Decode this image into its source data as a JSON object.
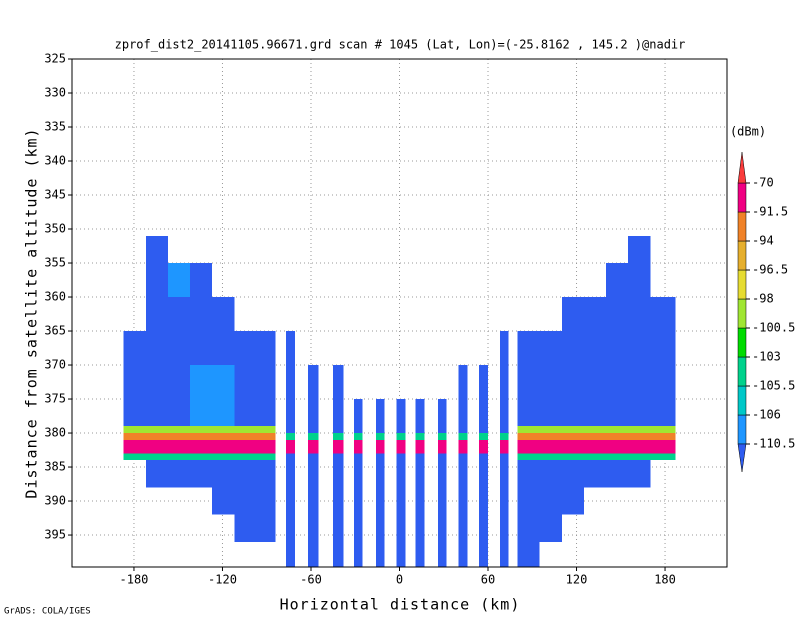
{
  "chart_data": {
    "type": "heatmap",
    "title": "zprof_dist2_20141105.96671.grd  scan # 1045  (Lat, Lon)=(-25.8162 , 145.2 )@nadir",
    "xlabel": "Horizontal distance (km)",
    "ylabel": "Distance from satellite altitude (km)",
    "footer": "GrADS: COLA/IGES",
    "xlim": [
      -222,
      222
    ],
    "ylim": [
      325,
      399.7
    ],
    "y_reversed": true,
    "xticks": [
      -180,
      -120,
      -60,
      0,
      60,
      120,
      180
    ],
    "yticks": [
      325,
      330,
      335,
      340,
      345,
      350,
      355,
      360,
      365,
      370,
      375,
      380,
      385,
      390,
      395
    ],
    "grid": true,
    "xbins": [
      -187,
      -172,
      -157,
      -142,
      -127,
      -112,
      -97,
      -84,
      -77,
      -71,
      -62,
      -55,
      -45,
      -38,
      -31,
      -25,
      -16,
      -10,
      -2,
      4,
      11,
      17,
      26,
      32,
      40,
      46,
      54,
      60,
      68,
      74,
      80,
      95,
      110,
      125,
      140,
      155,
      170,
      187
    ],
    "ybins": [
      351,
      355,
      360,
      365,
      370,
      375,
      379,
      380,
      381,
      383,
      384,
      388,
      392,
      396,
      399.7
    ],
    "z": [
      [
        null,
        -112,
        null,
        null,
        null,
        null,
        null,
        null,
        null,
        null,
        null,
        null,
        null,
        null,
        null,
        null,
        null,
        null,
        null,
        null,
        null,
        null,
        null,
        null,
        null,
        null,
        null,
        null,
        null,
        null,
        null,
        null,
        null,
        null,
        null,
        -112,
        null
      ],
      [
        null,
        -112,
        -107,
        -112,
        null,
        null,
        null,
        null,
        null,
        null,
        null,
        null,
        null,
        null,
        null,
        null,
        null,
        null,
        null,
        null,
        null,
        null,
        null,
        null,
        null,
        null,
        null,
        null,
        null,
        null,
        null,
        null,
        null,
        null,
        -112,
        -112,
        null
      ],
      [
        null,
        -112,
        -112,
        -112,
        -112,
        null,
        null,
        null,
        null,
        null,
        null,
        null,
        null,
        null,
        null,
        null,
        null,
        null,
        null,
        null,
        null,
        null,
        null,
        null,
        null,
        null,
        null,
        null,
        null,
        null,
        null,
        null,
        -112,
        -112,
        -112,
        -112,
        -112
      ],
      [
        -112,
        -112,
        -112,
        -112,
        -112,
        -112,
        -112,
        null,
        -112,
        null,
        null,
        null,
        null,
        null,
        null,
        null,
        null,
        null,
        null,
        null,
        null,
        null,
        null,
        null,
        null,
        null,
        null,
        null,
        -112,
        null,
        -112,
        -112,
        -112,
        -112,
        -112,
        -112,
        -112
      ],
      [
        -112,
        -112,
        -112,
        -107,
        -107,
        -112,
        -112,
        null,
        -112,
        null,
        -112,
        null,
        -112,
        null,
        null,
        null,
        null,
        null,
        null,
        null,
        null,
        null,
        null,
        null,
        -112,
        null,
        -112,
        null,
        -112,
        null,
        -112,
        -112,
        -112,
        -112,
        -112,
        -112,
        -112
      ],
      [
        -112,
        -112,
        -112,
        -107,
        -107,
        -112,
        -112,
        null,
        -112,
        null,
        -112,
        null,
        -112,
        null,
        -112,
        null,
        -112,
        null,
        -112,
        null,
        -112,
        null,
        -112,
        null,
        -112,
        null,
        -112,
        null,
        -112,
        null,
        -112,
        -112,
        -112,
        -112,
        -112,
        -112,
        -112
      ],
      [
        -99,
        -99,
        -99,
        -99,
        -99,
        -99,
        -99,
        null,
        -112,
        null,
        -112,
        null,
        -112,
        null,
        -112,
        null,
        -112,
        null,
        -112,
        null,
        -112,
        null,
        -112,
        null,
        -112,
        null,
        -112,
        null,
        -112,
        null,
        -99,
        -99,
        -99,
        -99,
        -99,
        -99,
        -99
      ],
      [
        -93,
        -93,
        -93,
        -93,
        -93,
        -93,
        -93,
        null,
        -104,
        null,
        -104,
        null,
        -104,
        null,
        -104,
        null,
        -104,
        null,
        -104,
        null,
        -104,
        null,
        -104,
        null,
        -104,
        null,
        -104,
        null,
        -104,
        null,
        -93,
        -93,
        -93,
        -93,
        -93,
        -93,
        -93
      ],
      [
        -85,
        -85,
        -85,
        -85,
        -85,
        -85,
        -85,
        null,
        -85,
        null,
        -85,
        null,
        -85,
        null,
        -85,
        null,
        -85,
        null,
        -85,
        null,
        -85,
        null,
        -85,
        null,
        -85,
        null,
        -85,
        null,
        -85,
        null,
        -85,
        -85,
        -85,
        -85,
        -85,
        -85,
        -85
      ],
      [
        -104,
        -104,
        -104,
        -104,
        -104,
        -104,
        -104,
        null,
        -112,
        null,
        -112,
        null,
        -112,
        null,
        -112,
        null,
        -112,
        null,
        -112,
        null,
        -112,
        null,
        -112,
        null,
        -112,
        null,
        -112,
        null,
        -112,
        null,
        -104,
        -104,
        -104,
        -104,
        -104,
        -104,
        -104
      ],
      [
        null,
        -112,
        -112,
        -112,
        -112,
        -112,
        -112,
        null,
        -112,
        null,
        -112,
        null,
        -112,
        null,
        -112,
        null,
        -112,
        null,
        -112,
        null,
        -112,
        null,
        -112,
        null,
        -112,
        null,
        -112,
        null,
        -112,
        null,
        -112,
        -112,
        -112,
        -112,
        -112,
        -112,
        null
      ],
      [
        null,
        null,
        null,
        null,
        -112,
        -112,
        -112,
        null,
        -112,
        null,
        -112,
        null,
        -112,
        null,
        -112,
        null,
        -112,
        null,
        -112,
        null,
        -112,
        null,
        -112,
        null,
        -112,
        null,
        -112,
        null,
        -112,
        null,
        -112,
        -112,
        -112,
        null,
        null,
        null,
        null
      ],
      [
        null,
        null,
        null,
        null,
        null,
        -112,
        -112,
        null,
        -112,
        null,
        -112,
        null,
        -112,
        null,
        -112,
        null,
        -112,
        null,
        -112,
        null,
        -112,
        null,
        -112,
        null,
        -112,
        null,
        -112,
        null,
        -112,
        null,
        -112,
        -112,
        null,
        null,
        null,
        null,
        null
      ],
      [
        null,
        null,
        null,
        null,
        null,
        null,
        null,
        null,
        -112,
        null,
        -112,
        null,
        -112,
        null,
        -112,
        null,
        -112,
        null,
        -112,
        null,
        -112,
        null,
        -112,
        null,
        -112,
        null,
        -112,
        null,
        -112,
        null,
        -112,
        null,
        null,
        null,
        null,
        null,
        null
      ]
    ],
    "colorbar": {
      "label": "(dBm)",
      "levels": [
        -110.5,
        -106,
        -105.5,
        -103,
        -100.5,
        -98,
        -96.5,
        -94,
        -91.5,
        -70
      ],
      "colors": [
        "#2e5cf0",
        "#1e96ff",
        "#00c8c8",
        "#00d28c",
        "#00dc00",
        "#a0e632",
        "#e6dc32",
        "#e6af2d",
        "#f08228",
        "#f00082",
        "#fa3c3c"
      ]
    }
  }
}
